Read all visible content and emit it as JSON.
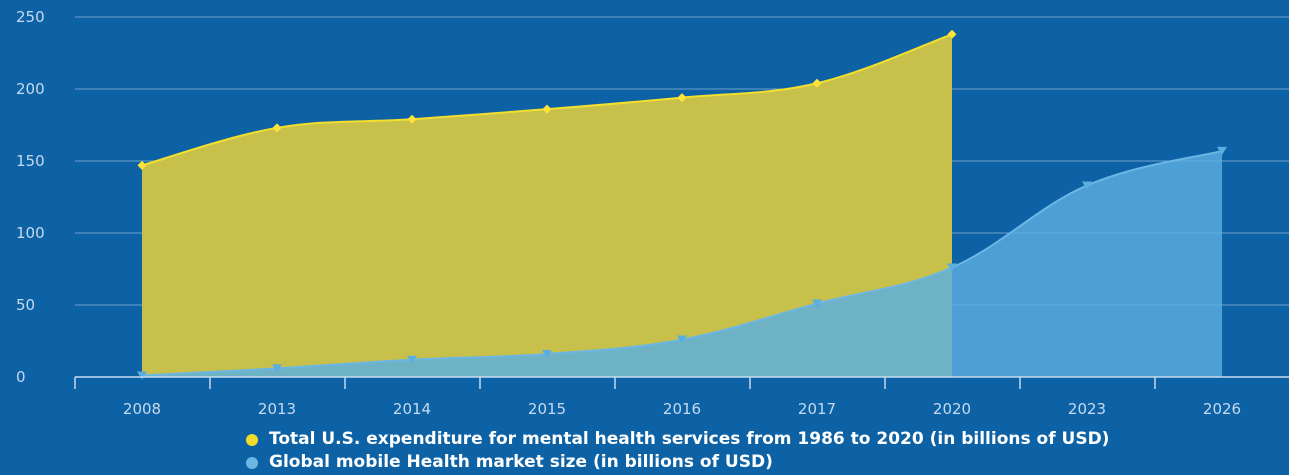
{
  "chart_data": {
    "type": "area",
    "categories": [
      "2008",
      "2013",
      "2014",
      "2015",
      "2016",
      "2017",
      "2020",
      "2023",
      "2026"
    ],
    "ylim": [
      0,
      250
    ],
    "yticks": [
      0,
      50,
      100,
      150,
      200,
      250
    ],
    "grid": true,
    "legend_position": "bottom",
    "series": [
      {
        "name": "Total U.S. expenditure for mental health services from 1986 to 2020 (in billions of USD)",
        "values": [
          147,
          173,
          179,
          186,
          194,
          204,
          238,
          null,
          null
        ],
        "color": "#f0dc2a"
      },
      {
        "name": "Global mobile Health market size (in billions of USD)",
        "values": [
          1,
          6,
          12,
          16,
          26,
          51,
          76,
          133,
          157
        ],
        "color": "#6bb6e3"
      }
    ]
  }
}
